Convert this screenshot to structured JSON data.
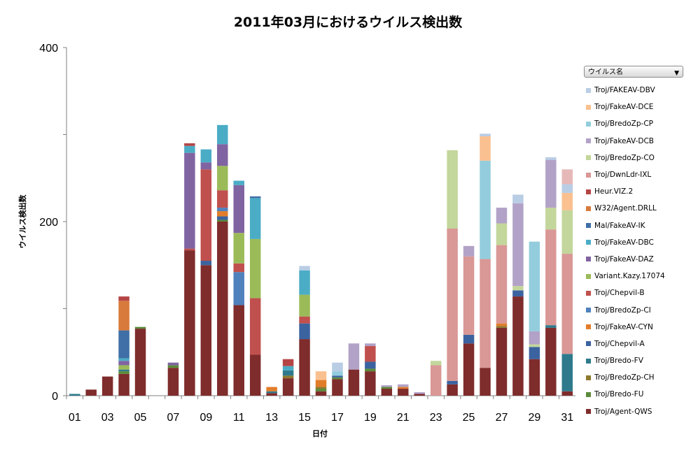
{
  "chart_data": {
    "type": "bar",
    "stacked": true,
    "title": "2011年03月におけるウイルス検出数",
    "xlabel": "日付",
    "ylabel": "ウイルス検出数",
    "ylim": [
      0,
      400
    ],
    "y_ticks": [
      "0",
      "200",
      "400"
    ],
    "categories": [
      "01",
      "02",
      "03",
      "04",
      "05",
      "06",
      "07",
      "08",
      "09",
      "10",
      "11",
      "12",
      "13",
      "14",
      "15",
      "16",
      "17",
      "18",
      "19",
      "20",
      "21",
      "22",
      "23",
      "24",
      "25",
      "26",
      "27",
      "28",
      "29",
      "30",
      "31"
    ],
    "x_tick_labels": [
      "01",
      "03",
      "05",
      "07",
      "09",
      "11",
      "13",
      "15",
      "17",
      "19",
      "21",
      "23",
      "25",
      "27",
      "29",
      "31"
    ],
    "legend_title": "ウイルス名",
    "series": [
      {
        "name": "Troj/Agent-QWS",
        "color": "#7f2c2c",
        "values": [
          0,
          7,
          22,
          25,
          77,
          0,
          32,
          167,
          150,
          200,
          104,
          47,
          3,
          20,
          65,
          5,
          19,
          30,
          28,
          8,
          8,
          2,
          0,
          13,
          60,
          32,
          78,
          114,
          42,
          78,
          5
        ]
      },
      {
        "name": "Troj/Bredo-FU",
        "color": "#5b8a3a",
        "values": [
          0,
          0,
          0,
          3,
          2,
          0,
          3,
          0,
          0,
          2,
          0,
          0,
          0,
          0,
          0,
          3,
          2,
          0,
          3,
          2,
          0,
          0,
          0,
          0,
          0,
          0,
          0,
          0,
          0,
          0,
          0
        ]
      },
      {
        "name": "Troj/BredoZp-CH",
        "color": "#8e7a2e",
        "values": [
          0,
          0,
          0,
          0,
          0,
          0,
          0,
          0,
          0,
          0,
          0,
          0,
          0,
          3,
          0,
          2,
          0,
          0,
          0,
          0,
          0,
          0,
          0,
          0,
          0,
          0,
          2,
          0,
          0,
          0,
          0
        ]
      },
      {
        "name": "Troj/Bredo-FV",
        "color": "#2e7a8c",
        "values": [
          2,
          0,
          0,
          2,
          0,
          0,
          0,
          0,
          0,
          0,
          0,
          0,
          2,
          6,
          0,
          0,
          0,
          0,
          0,
          0,
          0,
          0,
          0,
          0,
          0,
          0,
          0,
          0,
          0,
          3,
          43
        ]
      },
      {
        "name": "Troj/Chepvil-A",
        "color": "#3b63a0",
        "values": [
          0,
          0,
          0,
          0,
          0,
          0,
          0,
          0,
          5,
          4,
          0,
          0,
          0,
          0,
          18,
          0,
          2,
          0,
          8,
          0,
          0,
          0,
          0,
          4,
          10,
          0,
          0,
          7,
          14,
          0,
          0
        ]
      },
      {
        "name": "Troj/FakeAV-CYN",
        "color": "#e27d2b",
        "values": [
          0,
          0,
          0,
          0,
          0,
          0,
          0,
          0,
          0,
          6,
          0,
          0,
          5,
          0,
          0,
          8,
          0,
          0,
          0,
          0,
          2,
          0,
          0,
          0,
          0,
          0,
          3,
          0,
          0,
          0,
          0
        ]
      },
      {
        "name": "Troj/BredoZp-CI",
        "color": "#4f81bd",
        "values": [
          0,
          0,
          0,
          0,
          0,
          0,
          0,
          0,
          0,
          4,
          38,
          0,
          0,
          0,
          0,
          0,
          0,
          0,
          0,
          0,
          0,
          0,
          0,
          0,
          0,
          0,
          0,
          0,
          0,
          0,
          0
        ]
      },
      {
        "name": "Troj/Chepvil-B",
        "color": "#c0504d",
        "values": [
          0,
          0,
          0,
          0,
          0,
          0,
          0,
          2,
          105,
          20,
          10,
          65,
          0,
          0,
          8,
          0,
          0,
          0,
          18,
          0,
          0,
          0,
          0,
          0,
          0,
          0,
          0,
          0,
          0,
          0,
          0
        ]
      },
      {
        "name": "Variant.Kazy.17074",
        "color": "#9bbb59",
        "values": [
          0,
          0,
          0,
          5,
          0,
          0,
          0,
          0,
          0,
          28,
          35,
          68,
          0,
          0,
          25,
          0,
          0,
          0,
          0,
          0,
          0,
          0,
          0,
          0,
          0,
          0,
          0,
          0,
          0,
          0,
          0
        ]
      },
      {
        "name": "Troj/FakeAV-DAZ",
        "color": "#8064a2",
        "values": [
          0,
          0,
          0,
          5,
          0,
          0,
          3,
          110,
          8,
          25,
          55,
          0,
          0,
          0,
          0,
          0,
          0,
          0,
          0,
          0,
          0,
          0,
          0,
          0,
          0,
          0,
          0,
          0,
          0,
          0,
          0
        ]
      },
      {
        "name": "Troj/FakeAV-DBC",
        "color": "#4bacc6",
        "values": [
          0,
          0,
          0,
          3,
          0,
          0,
          0,
          8,
          15,
          22,
          5,
          47,
          0,
          5,
          28,
          0,
          0,
          0,
          0,
          0,
          0,
          0,
          0,
          0,
          0,
          0,
          0,
          0,
          0,
          0,
          0
        ]
      },
      {
        "name": "Mal/FakeAV-IK",
        "color": "#3f6fa6",
        "values": [
          0,
          0,
          0,
          32,
          0,
          0,
          0,
          0,
          0,
          0,
          0,
          2,
          0,
          0,
          0,
          0,
          0,
          0,
          0,
          0,
          0,
          0,
          0,
          0,
          0,
          0,
          0,
          0,
          0,
          0,
          0
        ]
      },
      {
        "name": "W32/Agent.DRLL",
        "color": "#d87a3c",
        "values": [
          0,
          0,
          0,
          34,
          0,
          0,
          0,
          0,
          0,
          0,
          0,
          0,
          0,
          0,
          0,
          0,
          0,
          0,
          0,
          0,
          0,
          0,
          0,
          0,
          0,
          0,
          0,
          0,
          0,
          0,
          0
        ]
      },
      {
        "name": "Heur.VIZ.2",
        "color": "#b54545",
        "values": [
          0,
          0,
          0,
          5,
          0,
          0,
          0,
          3,
          0,
          0,
          0,
          0,
          0,
          8,
          0,
          0,
          0,
          0,
          0,
          0,
          0,
          0,
          0,
          0,
          0,
          0,
          0,
          0,
          0,
          0,
          0
        ]
      },
      {
        "name": "Troj/DwnLdr-IXL",
        "color": "#d99795",
        "values": [
          0,
          0,
          0,
          0,
          0,
          0,
          0,
          0,
          0,
          0,
          0,
          0,
          0,
          0,
          0,
          0,
          0,
          0,
          0,
          0,
          0,
          0,
          35,
          175,
          90,
          125,
          90,
          0,
          0,
          110,
          115
        ]
      },
      {
        "name": "Troj/BredoZp-CO",
        "color": "#c3d69b",
        "values": [
          0,
          0,
          0,
          0,
          0,
          0,
          0,
          0,
          0,
          0,
          0,
          0,
          0,
          0,
          0,
          0,
          0,
          0,
          0,
          0,
          0,
          0,
          5,
          90,
          0,
          0,
          25,
          5,
          3,
          25,
          50
        ]
      },
      {
        "name": "Troj/FakeAV-DCB",
        "color": "#b3a2c7",
        "values": [
          0,
          0,
          0,
          0,
          0,
          0,
          0,
          0,
          0,
          0,
          0,
          0,
          0,
          0,
          0,
          0,
          0,
          30,
          3,
          2,
          3,
          2,
          0,
          0,
          12,
          0,
          18,
          95,
          15,
          55,
          0
        ]
      },
      {
        "name": "Troj/BredoZp-CP",
        "color": "#93cddd",
        "values": [
          0,
          0,
          0,
          0,
          0,
          0,
          0,
          0,
          0,
          0,
          0,
          0,
          0,
          0,
          0,
          0,
          5,
          0,
          0,
          0,
          0,
          0,
          0,
          0,
          0,
          113,
          0,
          0,
          103,
          0,
          0
        ]
      },
      {
        "name": "Troj/FakeAV-DCE",
        "color": "#fac090",
        "values": [
          0,
          0,
          0,
          0,
          0,
          0,
          0,
          0,
          0,
          0,
          0,
          0,
          0,
          0,
          0,
          10,
          0,
          0,
          0,
          0,
          0,
          0,
          0,
          0,
          0,
          28,
          0,
          0,
          0,
          0,
          20
        ]
      },
      {
        "name": "Troj/FAKEAV-DBV",
        "color": "#b9cde5",
        "values": [
          0,
          0,
          0,
          0,
          0,
          0,
          0,
          0,
          0,
          0,
          0,
          0,
          0,
          0,
          5,
          0,
          10,
          0,
          0,
          0,
          0,
          0,
          0,
          0,
          0,
          3,
          0,
          10,
          0,
          3,
          10
        ]
      },
      {
        "name": "",
        "color": "#e6b9b8",
        "values": [
          0,
          0,
          0,
          0,
          0,
          0,
          0,
          0,
          0,
          0,
          0,
          0,
          0,
          0,
          0,
          0,
          0,
          0,
          0,
          0,
          0,
          0,
          0,
          0,
          0,
          0,
          0,
          0,
          0,
          0,
          17
        ]
      }
    ]
  }
}
